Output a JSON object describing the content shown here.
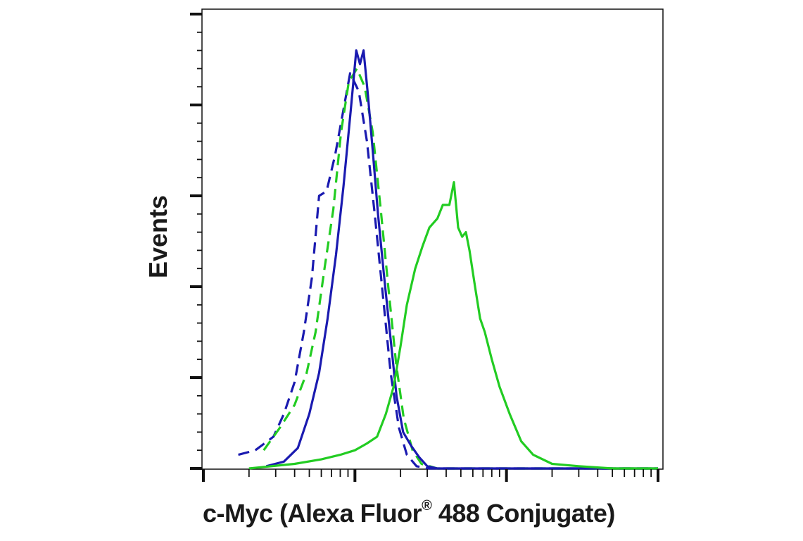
{
  "chart_data": {
    "type": "line",
    "xlabel": "c-Myc (Alexa Fluor",
    "xlabel_reg": "®",
    "xlabel_suffix": " 488 Conjugate)",
    "ylabel": "Events",
    "title": "",
    "grid": false,
    "legend": "none",
    "x_scale": "log",
    "xlim": [
      1,
      1000
    ],
    "ylim": [
      0,
      100
    ],
    "y_major_ticks": [
      0,
      20,
      40,
      60,
      80,
      100
    ],
    "series": [
      {
        "color": "#1a1ab0",
        "dash": "dashed",
        "x": [
          1.7,
          2.2,
          2.9,
          3.4,
          4.0,
          4.6,
          5.2,
          5.8,
          6.5,
          7.4,
          8.3,
          9.3,
          10.6,
          12.0,
          13.6,
          15.3,
          17.2,
          19.5,
          22.0,
          25.5,
          30,
          60,
          1000
        ],
        "y": [
          3,
          4,
          7,
          12,
          19,
          30,
          42,
          60,
          61,
          69,
          78,
          87,
          83,
          72,
          55,
          38,
          21,
          9,
          3,
          0.5,
          0,
          0,
          0
        ]
      },
      {
        "color": "#22cc22",
        "dash": "dashed",
        "x": [
          2.5,
          3.2,
          4.0,
          4.8,
          5.5,
          6.3,
          7.2,
          8.1,
          9.1,
          10.3,
          11.6,
          13.1,
          14.8,
          16.6,
          18.7,
          21.0,
          24.0,
          27.5,
          35,
          60,
          1000
        ],
        "y": [
          4,
          9,
          14,
          21,
          30,
          44,
          57,
          74,
          85,
          88,
          84,
          74,
          57,
          40,
          23,
          11,
          4,
          1,
          0,
          0,
          0
        ]
      },
      {
        "color": "#1a1ab0",
        "dash": "solid",
        "x": [
          2.6,
          3.4,
          4.2,
          5.0,
          5.8,
          6.6,
          7.5,
          8.4,
          9.4,
          10.2,
          10.8,
          11.4,
          12.2,
          13.1,
          14.2,
          15.5,
          17.0,
          18.8,
          20.8,
          23.5,
          26.5,
          30.0,
          35.0,
          60,
          1000
        ],
        "y": [
          0.5,
          1.5,
          4.5,
          12,
          21,
          33,
          47,
          62,
          79,
          92,
          89,
          92,
          82,
          70,
          56,
          43,
          30,
          16,
          8,
          5,
          2.5,
          0.5,
          0,
          0,
          0
        ]
      },
      {
        "color": "#22cc22",
        "dash": "solid",
        "x": [
          2,
          4,
          6,
          8,
          10,
          12,
          14,
          16,
          18,
          20,
          22,
          25,
          28,
          31,
          35,
          38,
          42,
          45,
          48,
          51,
          54,
          57,
          62,
          67,
          72,
          80,
          90,
          105,
          125,
          150,
          200,
          300,
          500,
          1000
        ],
        "y": [
          0,
          1,
          2,
          3,
          4,
          5.5,
          7,
          12,
          18,
          27,
          36,
          44,
          49,
          53,
          55,
          58,
          58,
          63,
          53,
          51,
          52,
          48,
          40,
          33,
          30,
          24,
          18,
          12,
          6,
          3,
          1,
          0.5,
          0,
          0
        ]
      }
    ]
  }
}
